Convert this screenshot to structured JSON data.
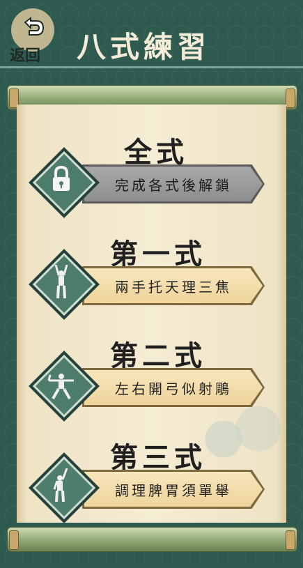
{
  "header": {
    "back_label": "返回",
    "title": "八式練習"
  },
  "items": [
    {
      "heading": "全式",
      "label": "完成各式後解鎖",
      "locked": true,
      "icon": "lock-icon"
    },
    {
      "heading": "第一式",
      "label": "兩手托天理三焦",
      "locked": false,
      "icon": "figure-arms-up-icon"
    },
    {
      "heading": "第二式",
      "label": "左右開弓似射鵰",
      "locked": false,
      "icon": "figure-bow-stance-icon"
    },
    {
      "heading": "第三式",
      "label": "調理脾胃須單舉",
      "locked": false,
      "icon": "figure-one-arm-up-icon"
    }
  ],
  "colors": {
    "background": "#2f5a50",
    "paper": "#f5ecd4",
    "plaque": "#efd49b",
    "locked_plaque": "#8e8e8e",
    "diamond": "#4f7d6c"
  }
}
